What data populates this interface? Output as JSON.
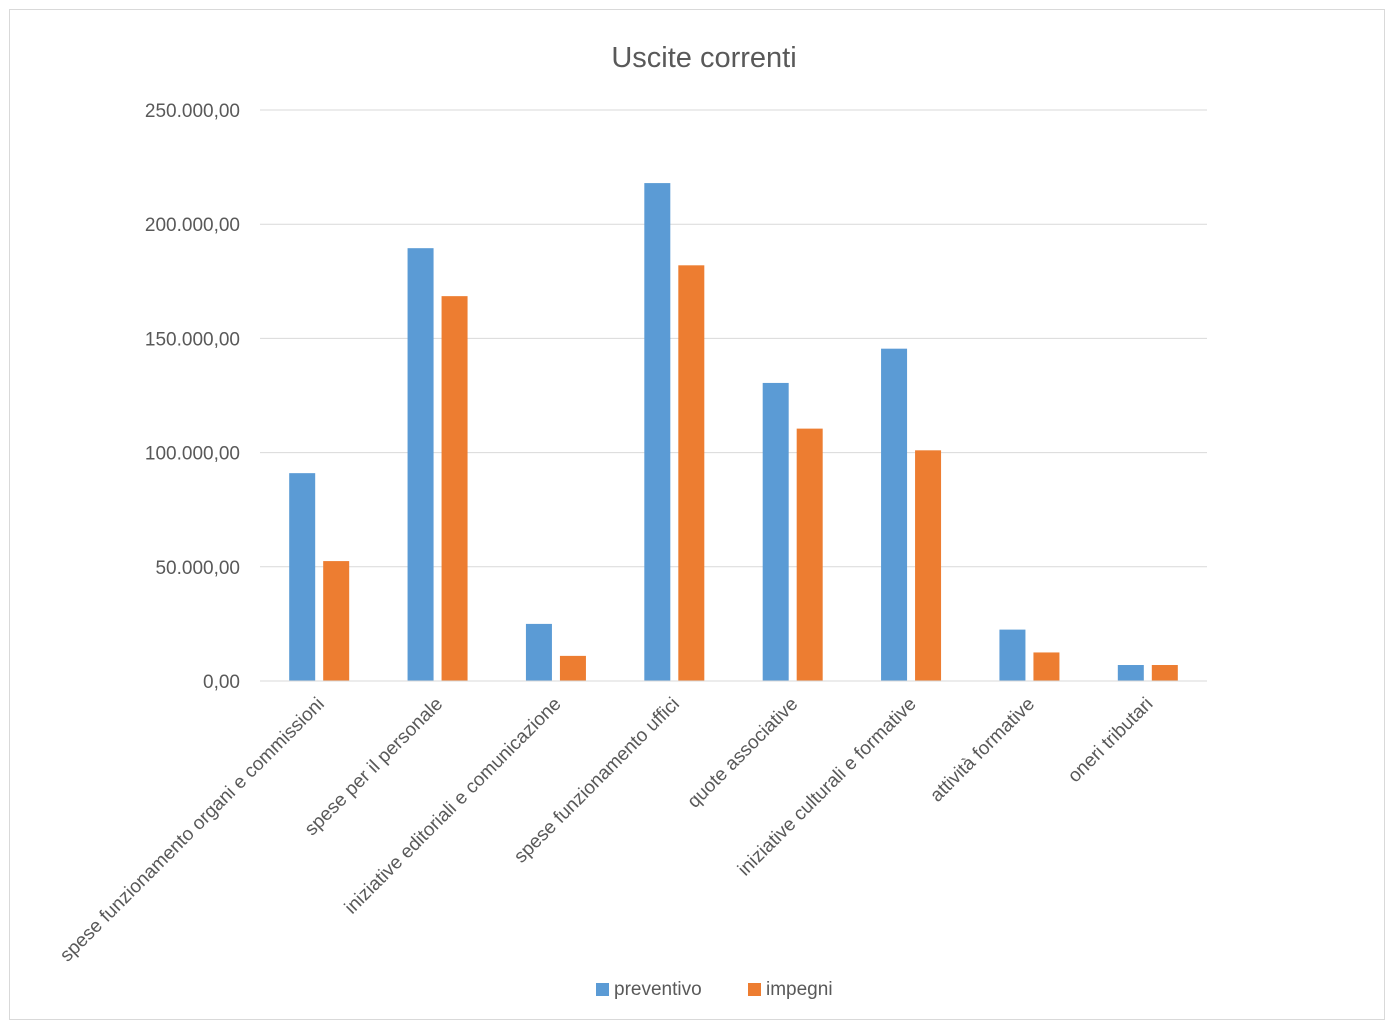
{
  "chart_data": {
    "type": "bar",
    "title": "Uscite correnti",
    "xlabel": "",
    "ylabel": "",
    "ylim": [
      0,
      250000
    ],
    "yticks": [
      0,
      50000,
      100000,
      150000,
      200000,
      250000
    ],
    "ytick_labels": [
      "0,00",
      "50.000,00",
      "100.000,00",
      "150.000,00",
      "200.000,00",
      "250.000,00"
    ],
    "grid": true,
    "legend_position": "bottom",
    "categories": [
      "spese funzionamento organi e commissioni",
      "spese per il personale",
      "iniziative editoriali e comunicazione",
      "spese funzionamento uffici",
      "quote associative",
      "iniziative culturali e formative",
      "attività formative",
      "oneri tributari"
    ],
    "series": [
      {
        "name": "preventivo",
        "color": "#5b9bd5",
        "values": [
          91000,
          189500,
          25000,
          218000,
          130500,
          145500,
          22500,
          7000
        ]
      },
      {
        "name": "impegni",
        "color": "#ed7d31",
        "values": [
          52500,
          168500,
          11000,
          182000,
          110500,
          101000,
          12500,
          7000
        ]
      }
    ]
  }
}
